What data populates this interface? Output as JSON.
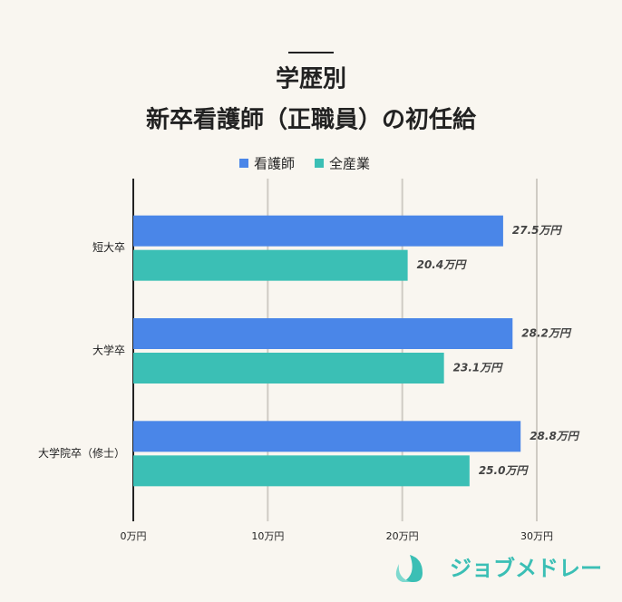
{
  "chart_data": {
    "type": "hbar",
    "title": [
      "学歴別",
      "新卒看護師（正職員）の初任給"
    ],
    "categories": [
      "短大卒",
      "大学卒",
      "大学院卒（修士）"
    ],
    "series": [
      {
        "name": "看護師",
        "color": "#4a86e8",
        "values": [
          27.5,
          28.2,
          28.8
        ],
        "value_labels": [
          "27.5万円",
          "28.2万円",
          "28.8万円"
        ]
      },
      {
        "name": "全産業",
        "color": "#3bbfb5",
        "values": [
          20.4,
          23.1,
          25.0
        ],
        "value_labels": [
          "20.4万円",
          "23.1万円",
          "25.0万円"
        ]
      }
    ],
    "xlim": [
      0,
      30
    ],
    "xticks": [
      {
        "value": 0,
        "label": "0万円"
      },
      {
        "value": 10,
        "label": "10万円"
      },
      {
        "value": 20,
        "label": "20万円"
      },
      {
        "value": 30,
        "label": "30万円"
      }
    ],
    "grid": true,
    "legend": "top"
  },
  "brand": "ジョブメドレー"
}
